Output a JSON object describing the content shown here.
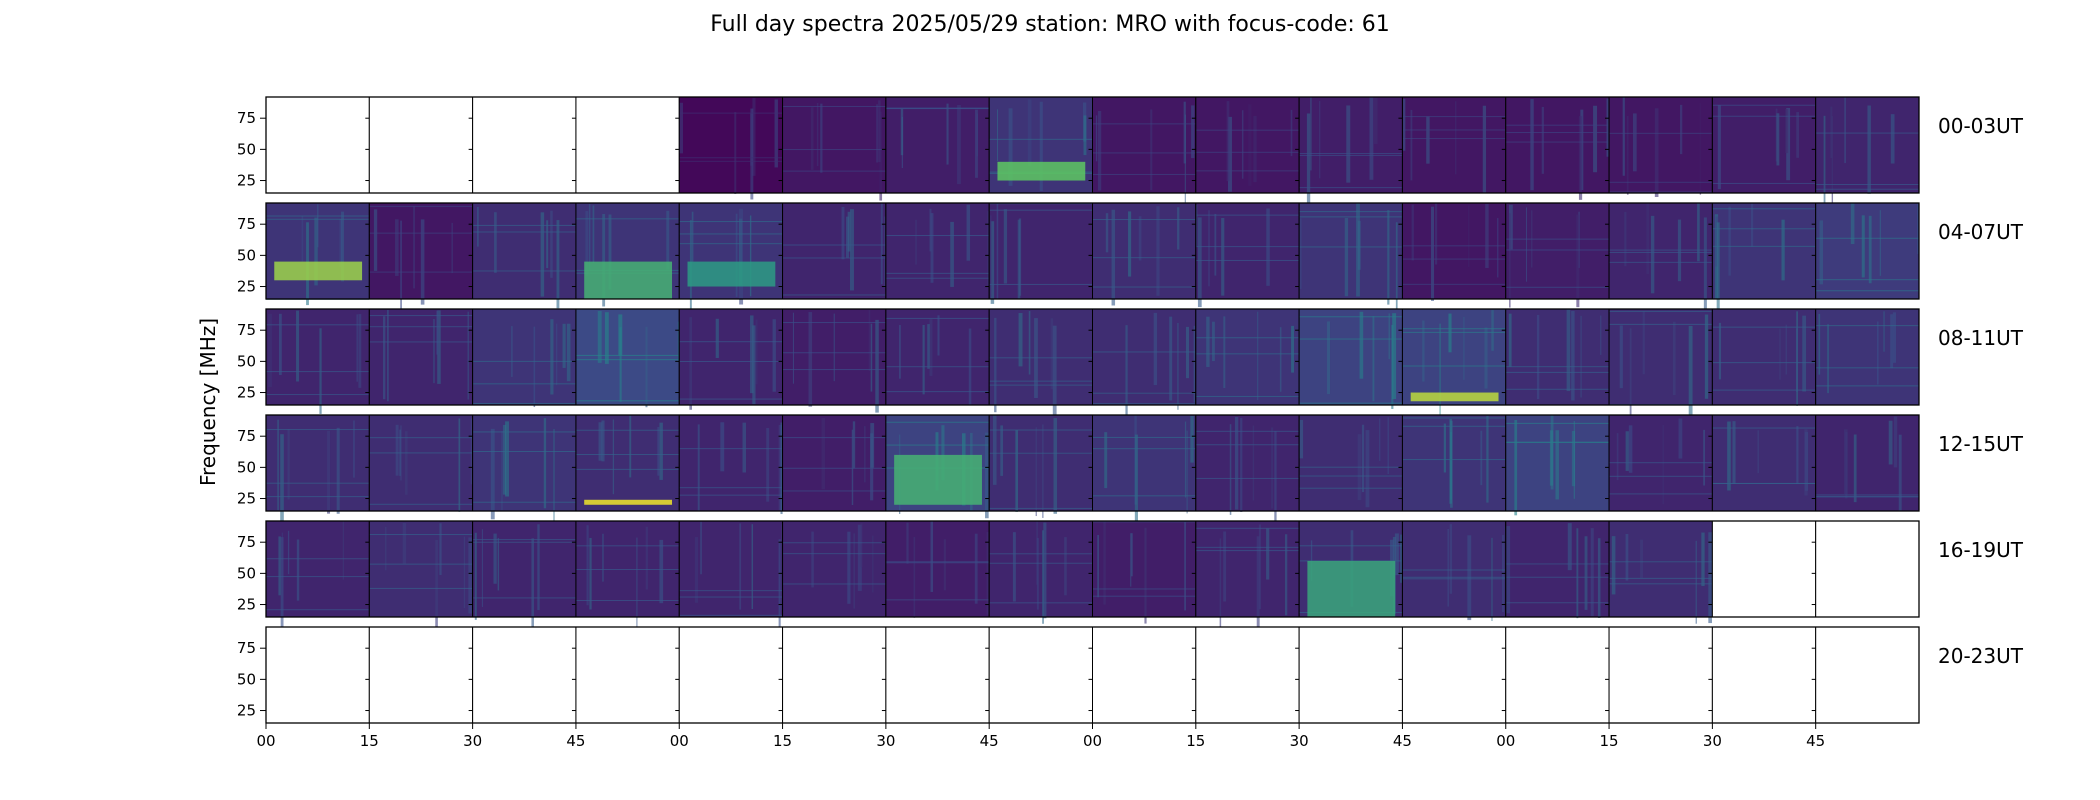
{
  "chart_data": {
    "type": "heatmap",
    "title": "Full day spectra 2025/05/29 station: MRO with focus-code: 61",
    "ylabel": "Frequency [MHz]",
    "xlabel": "",
    "ylim": [
      15,
      92
    ],
    "yticks": [
      25,
      50,
      75
    ],
    "xtick_labels": [
      "00",
      "15",
      "30",
      "45",
      "00",
      "15",
      "30",
      "45",
      "00",
      "15",
      "30",
      "45",
      "00",
      "15",
      "30",
      "45"
    ],
    "colormap": "viridis",
    "colors": {
      "background": "#440154",
      "low": "#46327e",
      "mid": "#365c8d",
      "cyan": "#1fa187",
      "bright": "#4ac16d",
      "peak": "#fde725",
      "empty": "#ffffff"
    },
    "rows": [
      {
        "label": "00-03UT",
        "panels": [
          {
            "data": false
          },
          {
            "data": false
          },
          {
            "data": false
          },
          {
            "data": false
          },
          {
            "data": true,
            "level": 0.05
          },
          {
            "data": true,
            "level": 0.15
          },
          {
            "data": true,
            "level": 0.2
          },
          {
            "data": true,
            "level": 0.35,
            "band": [
              25,
              40
            ],
            "band_level": 0.75
          },
          {
            "data": true,
            "level": 0.15
          },
          {
            "data": true,
            "level": 0.15
          },
          {
            "data": true,
            "level": 0.2
          },
          {
            "data": true,
            "level": 0.15
          },
          {
            "data": true,
            "level": 0.15
          },
          {
            "data": true,
            "level": 0.15
          },
          {
            "data": true,
            "level": 0.2
          },
          {
            "data": true,
            "level": 0.25
          }
        ]
      },
      {
        "label": "04-07UT",
        "panels": [
          {
            "data": true,
            "level": 0.35,
            "band": [
              30,
              45
            ],
            "band_level": 0.85
          },
          {
            "data": true,
            "level": 0.15
          },
          {
            "data": true,
            "level": 0.3
          },
          {
            "data": true,
            "level": 0.35,
            "band": [
              15,
              45
            ],
            "band_level": 0.65
          },
          {
            "data": true,
            "level": 0.35,
            "band": [
              25,
              45
            ],
            "band_level": 0.55
          },
          {
            "data": true,
            "level": 0.25
          },
          {
            "data": true,
            "level": 0.25
          },
          {
            "data": true,
            "level": 0.25
          },
          {
            "data": true,
            "level": 0.3
          },
          {
            "data": true,
            "level": 0.25
          },
          {
            "data": true,
            "level": 0.35
          },
          {
            "data": true,
            "level": 0.15
          },
          {
            "data": true,
            "level": 0.2
          },
          {
            "data": true,
            "level": 0.25
          },
          {
            "data": true,
            "level": 0.35
          },
          {
            "data": true,
            "level": 0.4
          }
        ]
      },
      {
        "label": "08-11UT",
        "panels": [
          {
            "data": true,
            "level": 0.25
          },
          {
            "data": true,
            "level": 0.25
          },
          {
            "data": true,
            "level": 0.35
          },
          {
            "data": true,
            "level": 0.5
          },
          {
            "data": true,
            "level": 0.25
          },
          {
            "data": true,
            "level": 0.2
          },
          {
            "data": true,
            "level": 0.25
          },
          {
            "data": true,
            "level": 0.3
          },
          {
            "data": true,
            "level": 0.3
          },
          {
            "data": true,
            "level": 0.35
          },
          {
            "data": true,
            "level": 0.45
          },
          {
            "data": true,
            "level": 0.45,
            "band": [
              18,
              25
            ],
            "band_level": 0.9
          },
          {
            "data": true,
            "level": 0.3
          },
          {
            "data": true,
            "level": 0.3
          },
          {
            "data": true,
            "level": 0.3
          },
          {
            "data": true,
            "level": 0.35
          }
        ]
      },
      {
        "label": "12-15UT",
        "panels": [
          {
            "data": true,
            "level": 0.3
          },
          {
            "data": true,
            "level": 0.3
          },
          {
            "data": true,
            "level": 0.35
          },
          {
            "data": true,
            "level": 0.3,
            "band": [
              20,
              24
            ],
            "band_level": 0.98
          },
          {
            "data": true,
            "level": 0.25
          },
          {
            "data": true,
            "level": 0.2
          },
          {
            "data": true,
            "level": 0.45,
            "band": [
              20,
              60
            ],
            "band_level": 0.65
          },
          {
            "data": true,
            "level": 0.3
          },
          {
            "data": true,
            "level": 0.35
          },
          {
            "data": true,
            "level": 0.25
          },
          {
            "data": true,
            "level": 0.3
          },
          {
            "data": true,
            "level": 0.35
          },
          {
            "data": true,
            "level": 0.45
          },
          {
            "data": true,
            "level": 0.25
          },
          {
            "data": true,
            "level": 0.3
          },
          {
            "data": true,
            "level": 0.25
          }
        ]
      },
      {
        "label": "16-19UT",
        "panels": [
          {
            "data": true,
            "level": 0.25
          },
          {
            "data": true,
            "level": 0.3
          },
          {
            "data": true,
            "level": 0.25
          },
          {
            "data": true,
            "level": 0.25
          },
          {
            "data": true,
            "level": 0.25
          },
          {
            "data": true,
            "level": 0.25
          },
          {
            "data": true,
            "level": 0.2
          },
          {
            "data": true,
            "level": 0.25
          },
          {
            "data": true,
            "level": 0.2
          },
          {
            "data": true,
            "level": 0.25
          },
          {
            "data": true,
            "level": 0.3,
            "band": [
              15,
              60
            ],
            "band_level": 0.6
          },
          {
            "data": true,
            "level": 0.3
          },
          {
            "data": true,
            "level": 0.25
          },
          {
            "data": true,
            "level": 0.3
          },
          {
            "data": false
          },
          {
            "data": false
          }
        ]
      },
      {
        "label": "20-23UT",
        "panels": [
          {
            "data": false
          },
          {
            "data": false
          },
          {
            "data": false
          },
          {
            "data": false
          },
          {
            "data": false
          },
          {
            "data": false
          },
          {
            "data": false
          },
          {
            "data": false
          },
          {
            "data": false
          },
          {
            "data": false
          },
          {
            "data": false
          },
          {
            "data": false
          },
          {
            "data": false
          },
          {
            "data": false
          },
          {
            "data": false
          },
          {
            "data": false
          }
        ]
      }
    ]
  }
}
